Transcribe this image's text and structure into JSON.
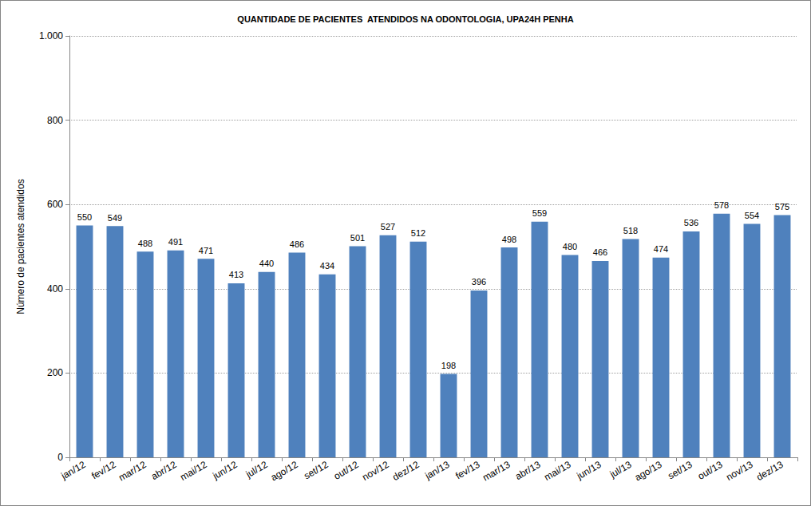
{
  "chart_data": {
    "type": "bar",
    "title": "QUANTIDADE DE PACIENTES  ATENDIDOS NA ODONTOLOGIA, UPA24H PENHA",
    "y_label": "Número de pacientes atendidos",
    "categories": [
      "jan/12",
      "fev/12",
      "mar/12",
      "abr/12",
      "mai/12",
      "jun/12",
      "jul/12",
      "ago/12",
      "set/12",
      "out/12",
      "nov/12",
      "dez/12",
      "jan/13",
      "fev/13",
      "mar/13",
      "abr/13",
      "mai/13",
      "jun/13",
      "jul/13",
      "ago/13",
      "set/13",
      "out/13",
      "nov/13",
      "dez/13"
    ],
    "values": [
      550,
      549,
      488,
      491,
      471,
      413,
      440,
      486,
      434,
      501,
      527,
      512,
      198,
      396,
      498,
      559,
      480,
      466,
      518,
      474,
      536,
      578,
      554,
      575
    ],
    "color": "#4f81bd",
    "ylim": [
      0,
      1000
    ],
    "yticks": [
      0,
      200,
      400,
      600,
      800,
      {
        "value": 1000,
        "label": "1.000"
      }
    ],
    "grid": true,
    "data_labels": true
  }
}
